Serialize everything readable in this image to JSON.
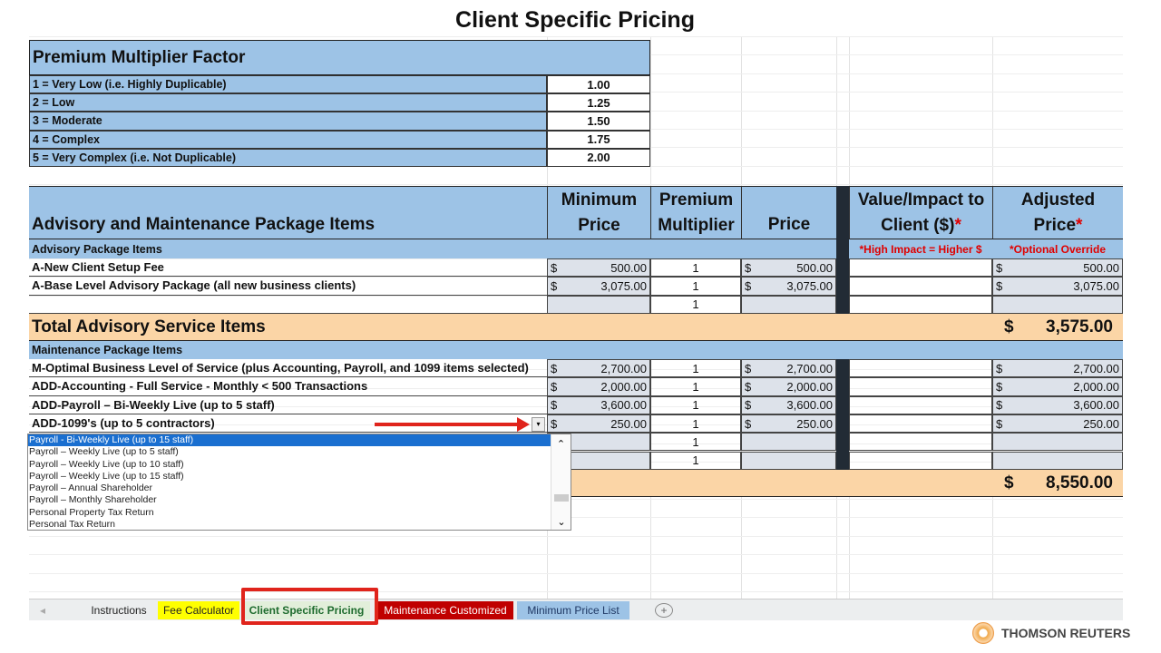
{
  "title": "Client Specific Pricing",
  "premium": {
    "header": "Premium Multiplier Factor",
    "rows": [
      {
        "label": "1 =  Very Low (i.e. Highly Duplicable)",
        "value": "1.00"
      },
      {
        "label": "2 = Low",
        "value": "1.25"
      },
      {
        "label": "3 = Moderate",
        "value": "1.50"
      },
      {
        "label": "4 = Complex",
        "value": "1.75"
      },
      {
        "label": "5 = Very Complex (i.e. Not Duplicable)",
        "value": "2.00"
      }
    ]
  },
  "headers": {
    "items": "Advisory and Maintenance Package Items",
    "min_price": [
      "Minimum",
      "Price"
    ],
    "multiplier": [
      "Premium",
      "Multiplier"
    ],
    "price": "Price",
    "value": [
      "Value/Impact to",
      "Client ($)",
      "*"
    ],
    "adjusted": [
      "Adjusted",
      "Price",
      "*"
    ]
  },
  "advisory": {
    "section": "Advisory Package Items",
    "note_value": "*High Impact = Higher $",
    "note_adjusted": "*Optional Override",
    "rows": [
      {
        "item": "A-New Client Setup Fee",
        "min": "500.00",
        "mult": "1",
        "price": "500.00",
        "adj": "500.00"
      },
      {
        "item": "A-Base Level Advisory Package (all new business clients)",
        "min": "3,075.00",
        "mult": "1",
        "price": "3,075.00",
        "adj": "3,075.00"
      },
      {
        "item": "",
        "min": "",
        "mult": "1",
        "price": "",
        "adj": ""
      }
    ],
    "total_label": "Total Advisory Service Items",
    "total": "3,575.00"
  },
  "maintenance": {
    "section": "Maintenance Package Items",
    "rows": [
      {
        "item": "M-Optimal Business Level of Service (plus Accounting, Payroll, and 1099 items selected)",
        "min": "2,700.00",
        "mult": "1",
        "price": "2,700.00",
        "adj": "2,700.00"
      },
      {
        "item": "ADD-Accounting - Full Service - Monthly < 500 Transactions",
        "min": "2,000.00",
        "mult": "1",
        "price": "2,000.00",
        "adj": "2,000.00"
      },
      {
        "item": "ADD-Payroll – Bi-Weekly Live (up to 5 staff)",
        "min": "3,600.00",
        "mult": "1",
        "price": "3,600.00",
        "adj": "3,600.00"
      },
      {
        "item": "ADD-1099's (up to 5 contractors)",
        "min": "250.00",
        "mult": "1",
        "price": "250.00",
        "adj": "250.00"
      },
      {
        "item": "",
        "min": "",
        "mult": "1",
        "price": "",
        "adj": ""
      },
      {
        "item": "",
        "min": "",
        "mult": "1",
        "price": "",
        "adj": ""
      }
    ],
    "total": "8,550.00"
  },
  "currency": "$",
  "dropdown": {
    "options": [
      "Payroll - Bi-Weekly Live (up to 15 staff)",
      "Payroll – Weekly Live (up to 5 staff)",
      "Payroll – Weekly Live (up to 10 staff)",
      "Payroll – Weekly Live (up to 15 staff)",
      "Payroll – Annual Shareholder",
      "Payroll – Monthly Shareholder",
      "Personal Property Tax Return",
      "Personal Tax Return"
    ],
    "selected": 0
  },
  "tabs": [
    {
      "label": "Instructions",
      "bg": "#eceeef",
      "color": "#222"
    },
    {
      "label": "Fee Calculator",
      "bg": "#ffff00",
      "color": "#222"
    },
    {
      "label": "Client Specific Pricing",
      "bg": "#e2efda",
      "color": "#1e6b2e",
      "active": true
    },
    {
      "label": "Maintenance Customized",
      "bg": "#c00000",
      "color": "#fff"
    },
    {
      "label": "Minimum Price List",
      "bg": "#9dc3e6",
      "color": "#1f3864"
    }
  ],
  "brand": "THOMSON REUTERS"
}
